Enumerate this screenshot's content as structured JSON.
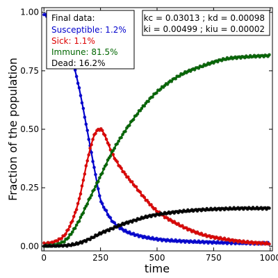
{
  "chart_data": {
    "type": "scatter",
    "xlabel": "time",
    "ylabel": "Fraction of the population",
    "xlim": [
      -10,
      1010
    ],
    "ylim": [
      -0.02,
      1.02
    ],
    "xticks": [
      0,
      250,
      500,
      750,
      1000
    ],
    "yticks": [
      0.0,
      0.25,
      0.5,
      0.75,
      1.0
    ],
    "xtick_labels": [
      "0",
      "250",
      "500",
      "750",
      "1000"
    ],
    "ytick_labels": [
      "0.00",
      "0.25",
      "0.50",
      "0.75",
      "1.00"
    ],
    "final_data_title": "Final data:",
    "rates": {
      "line1": "kc = 0.03013 ; kd = 0.00098",
      "line2": "ki = 0.00499 ; kiu = 0.00002"
    },
    "series": [
      {
        "name": "Susceptible",
        "label": "Susceptible: 1.2%",
        "color": "#0000cc",
        "dot_color": "#1a1acc",
        "x": [
          0,
          50,
          100,
          150,
          200,
          225,
          250,
          275,
          300,
          350,
          400,
          500,
          600,
          700,
          800,
          900,
          1000
        ],
        "values": [
          0.99,
          0.97,
          0.88,
          0.7,
          0.45,
          0.32,
          0.2,
          0.15,
          0.11,
          0.07,
          0.05,
          0.03,
          0.022,
          0.018,
          0.015,
          0.013,
          0.012
        ]
      },
      {
        "name": "Sick",
        "label": "Sick: 1.1%",
        "color": "#dd0000",
        "dot_color": "#cc1a1a",
        "x": [
          0,
          50,
          100,
          150,
          200,
          225,
          250,
          275,
          300,
          350,
          400,
          450,
          500,
          600,
          700,
          800,
          900,
          1000
        ],
        "values": [
          0.01,
          0.02,
          0.06,
          0.18,
          0.4,
          0.48,
          0.5,
          0.46,
          0.4,
          0.32,
          0.26,
          0.2,
          0.15,
          0.09,
          0.05,
          0.03,
          0.017,
          0.011
        ]
      },
      {
        "name": "Immune",
        "label": "Immune: 81.5%",
        "color": "#006600",
        "dot_color": "#1a661a",
        "x": [
          0,
          50,
          100,
          150,
          200,
          250,
          300,
          350,
          400,
          450,
          500,
          600,
          700,
          800,
          900,
          1000
        ],
        "values": [
          0.0,
          0.005,
          0.03,
          0.1,
          0.2,
          0.3,
          0.4,
          0.48,
          0.55,
          0.61,
          0.66,
          0.73,
          0.77,
          0.8,
          0.81,
          0.815
        ]
      },
      {
        "name": "Dead",
        "label": "Dead: 16.2%",
        "color": "#000000",
        "dot_color": "#111111",
        "x": [
          0,
          50,
          100,
          150,
          200,
          250,
          300,
          350,
          400,
          450,
          500,
          600,
          700,
          800,
          900,
          1000
        ],
        "values": [
          0.0,
          0.0,
          0.003,
          0.012,
          0.03,
          0.055,
          0.075,
          0.095,
          0.11,
          0.125,
          0.135,
          0.148,
          0.156,
          0.16,
          0.162,
          0.162
        ]
      }
    ]
  }
}
